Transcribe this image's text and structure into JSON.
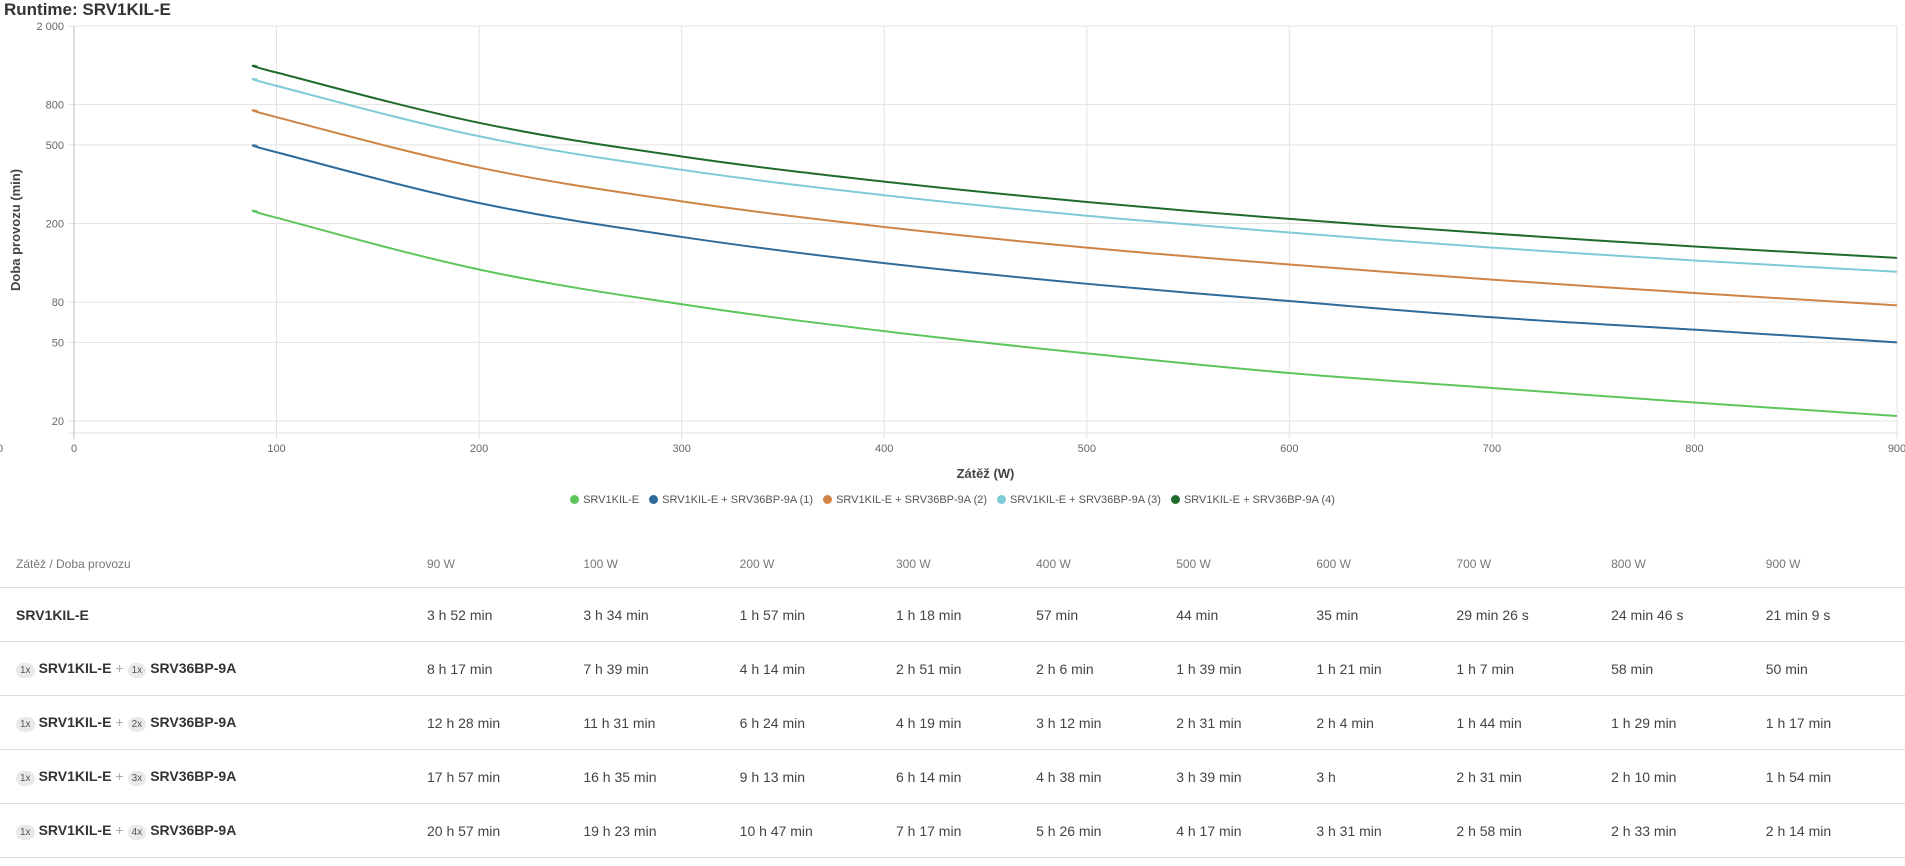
{
  "title": "Runtime: SRV1KIL-E",
  "chart_data": {
    "type": "line",
    "xlabel": "Zátěž (W)",
    "ylabel": "Doba provozu (min)",
    "xlim": [
      0,
      900
    ],
    "ylim": [
      17,
      2000
    ],
    "yscale": "log",
    "grid": true,
    "legend_position": "bottom",
    "x_ticks": [
      "0",
      "100",
      "200",
      "300",
      "400",
      "500",
      "600",
      "700",
      "800",
      "900"
    ],
    "y_ticks": [
      "2 000",
      "800",
      "500",
      "200",
      "80",
      "50",
      "20"
    ],
    "y_axis_min_label": "0",
    "x": [
      90,
      100,
      200,
      300,
      400,
      500,
      600,
      700,
      800,
      900
    ],
    "series": [
      {
        "name": "SRV1KIL-E",
        "color": "#5cc65c",
        "values": [
          232,
          214,
          117,
          78,
          57,
          44,
          35,
          29.4,
          24.8,
          21.2
        ]
      },
      {
        "name": "SRV1KIL-E + SRV36BP-9A (1)",
        "color": "#2f6b9a",
        "values": [
          497,
          459,
          254,
          171,
          126,
          99,
          81,
          67,
          58,
          50
        ]
      },
      {
        "name": "SRV1KIL-E + SRV36BP-9A (2)",
        "color": "#cf8445",
        "values": [
          748,
          691,
          384,
          259,
          192,
          151,
          124,
          104,
          89,
          77
        ]
      },
      {
        "name": "SRV1KIL-E + SRV36BP-9A (3)",
        "color": "#7ecad6",
        "values": [
          1077,
          995,
          553,
          374,
          278,
          219,
          180,
          151,
          130,
          114
        ]
      },
      {
        "name": "SRV1KIL-E + SRV36BP-9A (4)",
        "color": "#1f6b2b",
        "values": [
          1257,
          1163,
          647,
          437,
          326,
          257,
          211,
          178,
          153,
          134
        ]
      }
    ]
  },
  "table": {
    "header": [
      "Zátěž / Doba provozu",
      "90 W",
      "100 W",
      "200 W",
      "300 W",
      "400 W",
      "500 W",
      "600 W",
      "700 W",
      "800 W",
      "900 W"
    ],
    "rows": [
      {
        "name": "SRV1KIL-E",
        "values": [
          "3 h 52 min",
          "3 h 34 min",
          "1 h 57 min",
          "1 h 18 min",
          "57 min",
          "44 min",
          "35 min",
          "29 min 26 s",
          "24 min 46 s",
          "21 min 9 s"
        ]
      },
      {
        "q1": "1x",
        "name": "SRV1KIL-E",
        "plus": "+",
        "q2": "1x",
        "name2": "SRV36BP-9A",
        "values": [
          "8 h 17 min",
          "7 h 39 min",
          "4 h 14 min",
          "2 h 51 min",
          "2 h 6 min",
          "1 h 39 min",
          "1 h 21 min",
          "1 h 7 min",
          "58 min",
          "50 min"
        ]
      },
      {
        "q1": "1x",
        "name": "SRV1KIL-E",
        "plus": "+",
        "q2": "2x",
        "name2": "SRV36BP-9A",
        "values": [
          "12 h 28 min",
          "11 h 31 min",
          "6 h 24 min",
          "4 h 19 min",
          "3 h 12 min",
          "2 h 31 min",
          "2 h 4 min",
          "1 h 44 min",
          "1 h 29 min",
          "1 h 17 min"
        ]
      },
      {
        "q1": "1x",
        "name": "SRV1KIL-E",
        "plus": "+",
        "q2": "3x",
        "name2": "SRV36BP-9A",
        "values": [
          "17 h 57 min",
          "16 h 35 min",
          "9 h 13 min",
          "6 h 14 min",
          "4 h 38 min",
          "3 h 39 min",
          "3 h",
          "2 h 31 min",
          "2 h 10 min",
          "1 h 54 min"
        ]
      },
      {
        "q1": "1x",
        "name": "SRV1KIL-E",
        "plus": "+",
        "q2": "4x",
        "name2": "SRV36BP-9A",
        "values": [
          "20 h 57 min",
          "19 h 23 min",
          "10 h 47 min",
          "7 h 17 min",
          "5 h 26 min",
          "4 h 17 min",
          "3 h 31 min",
          "2 h 58 min",
          "2 h 33 min",
          "2 h 14 min"
        ]
      }
    ]
  }
}
